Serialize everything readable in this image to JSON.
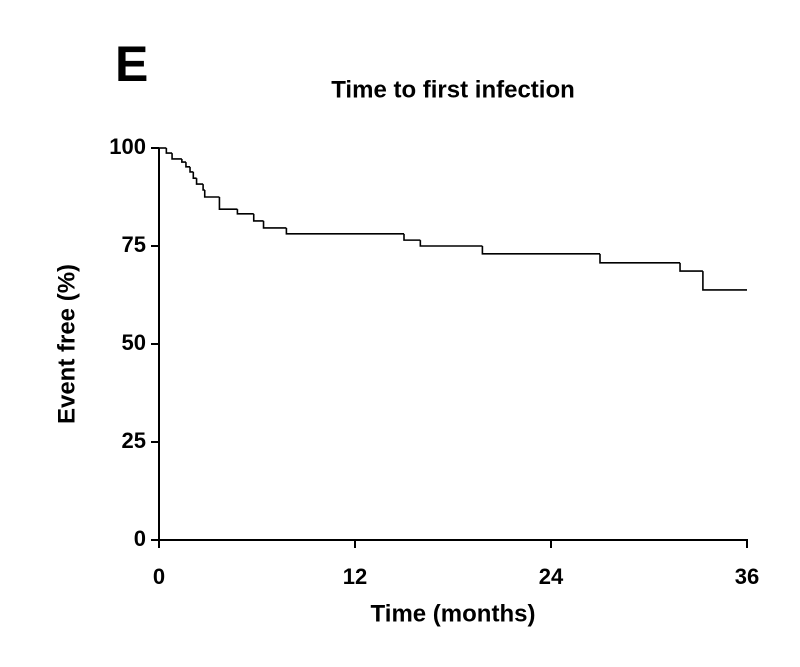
{
  "panel_label": "E",
  "chart_data": {
    "type": "step",
    "title": "Time to first infection",
    "x_label": "Time (months)",
    "y_label": "Event free (%)",
    "color": "#000000",
    "x": [
      0,
      0.45,
      0.8,
      1.4,
      1.65,
      1.9,
      2.1,
      2.3,
      2.7,
      2.8,
      3.7,
      4.8,
      5.8,
      6.4,
      7.8,
      15,
      16,
      19.8,
      27,
      31.9,
      33.3,
      36
    ],
    "values": [
      100,
      98.7,
      97.2,
      96.4,
      95.2,
      93.9,
      92.3,
      90.8,
      89.3,
      87.5,
      84.4,
      83.2,
      81.4,
      79.6,
      78.1,
      76.5,
      75,
      73,
      70.7,
      68.6,
      63.8,
      63.8
    ],
    "xlim": [
      0,
      36
    ],
    "xticks": [
      0,
      12,
      24,
      36
    ],
    "ylim": [
      0,
      100
    ],
    "yticks": [
      0,
      25,
      50,
      75,
      100
    ],
    "grid": false
  }
}
